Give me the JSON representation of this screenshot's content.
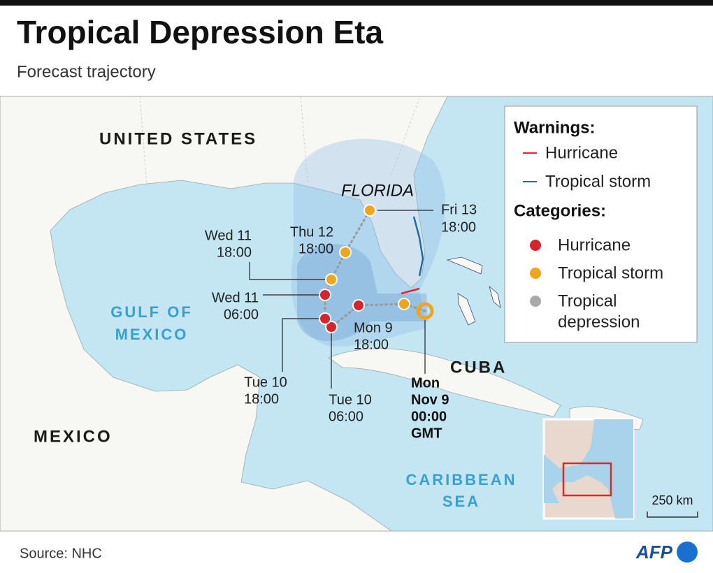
{
  "header": {
    "title": "Tropical Depression Eta",
    "subtitle": "Forecast trajectory"
  },
  "map": {
    "labels": {
      "united_states": "UNITED STATES",
      "florida": "FLORIDA",
      "gulf": [
        "GULF OF",
        "MEXICO"
      ],
      "cuba": "CUBA",
      "mexico": "MEXICO",
      "caribbean": [
        "CARIBBEAN",
        "SEA"
      ]
    },
    "track_labels": {
      "fri13": [
        "Fri 13",
        "18:00"
      ],
      "thu12": [
        "Thu 12",
        "18:00"
      ],
      "wed11_18": [
        "Wed 11",
        "18:00"
      ],
      "wed11_06": [
        "Wed 11",
        "06:00"
      ],
      "mon9_18": [
        "Mon 9",
        "18:00"
      ],
      "tue10_18": [
        "Tue 10",
        "18:00"
      ],
      "tue10_06": [
        "Tue 10",
        "06:00"
      ],
      "now": [
        "Mon",
        "Nov 9",
        "00:00",
        "GMT"
      ]
    },
    "scale": "250 km"
  },
  "legend": {
    "warnings_title": "Warnings:",
    "warnings": [
      "Hurricane",
      "Tropical storm"
    ],
    "categories_title": "Categories:",
    "categories": [
      [
        "Hurricane"
      ],
      [
        "Tropical storm"
      ],
      [
        "Tropical",
        "depression"
      ]
    ]
  },
  "footer": {
    "source": "Source: NHC",
    "logo": "AFP"
  }
}
